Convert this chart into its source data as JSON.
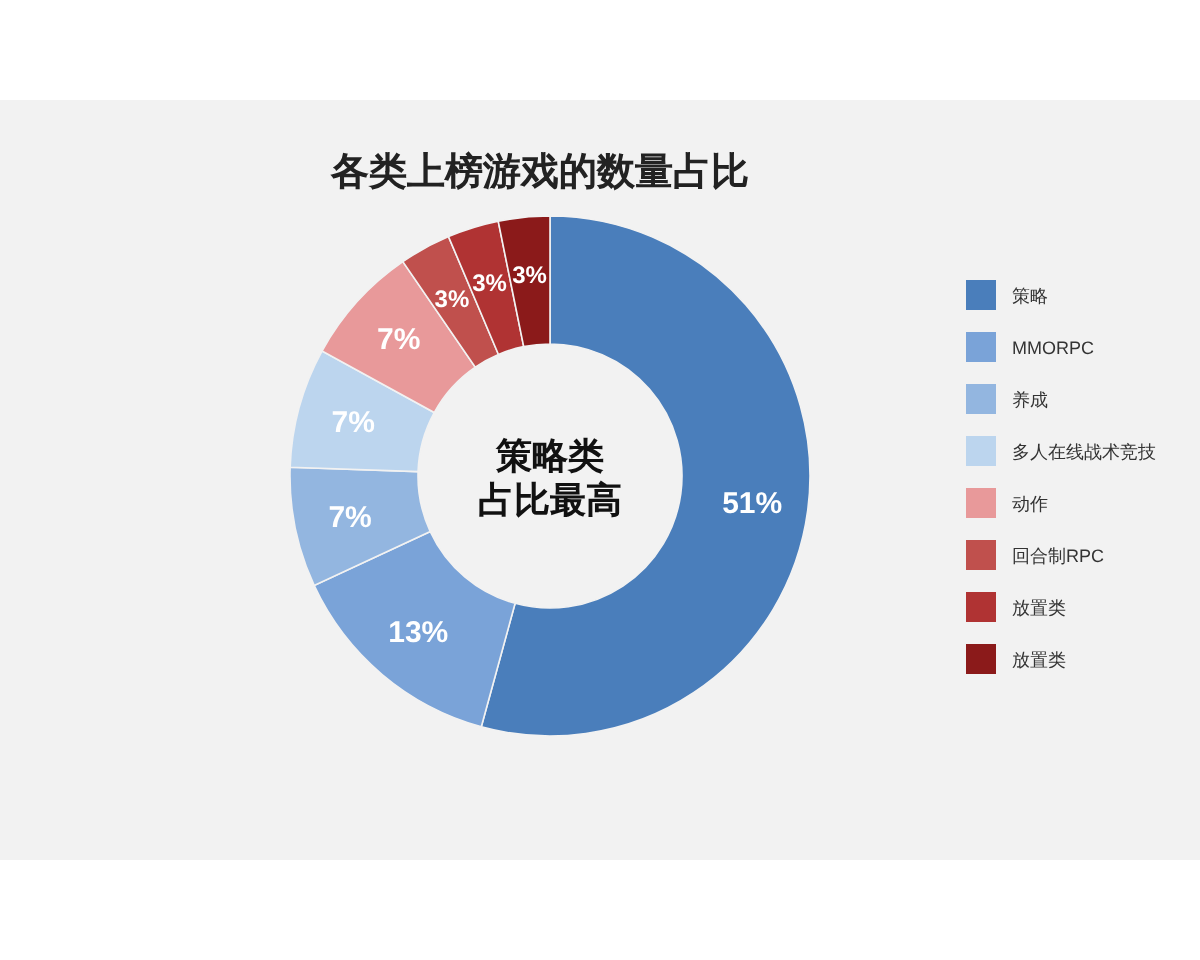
{
  "chart_data": {
    "type": "donut",
    "title": "各类上榜游戏的数量占比",
    "categories": [
      "策略",
      "MMORPC",
      "养成",
      "多人在线战术竞技",
      "动作",
      "回合制RPC",
      "放置类",
      "放置类"
    ],
    "values": [
      51,
      13,
      7,
      7,
      7,
      3,
      3,
      3
    ],
    "colors": [
      "#4a7ebb",
      "#7aa3d8",
      "#93b6e0",
      "#bcd5ee",
      "#e8999a",
      "#c0504d",
      "#b03333",
      "#8b1a1a"
    ],
    "annotations": [
      "策略类",
      "占比最高"
    ],
    "value_labels": [
      "51%",
      "13%",
      "7%",
      "7%",
      "7%",
      "3%",
      "3%",
      "3%"
    ],
    "legend": "right"
  }
}
